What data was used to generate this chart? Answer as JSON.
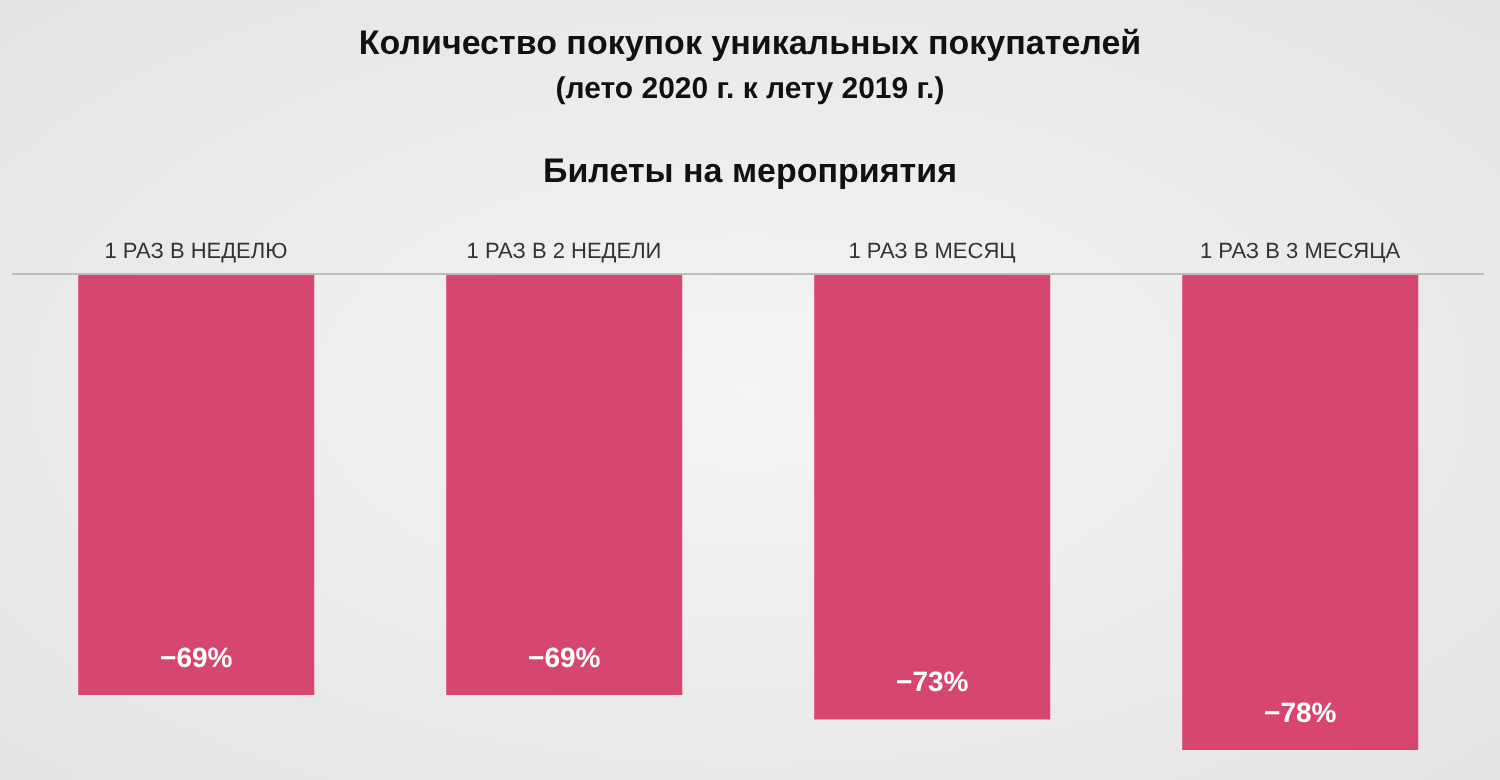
{
  "chart_data": {
    "type": "bar",
    "title": "Количество покупок уникальных покупателей",
    "subtitle": "(лето 2020 г. к лету 2019 г.)",
    "annotations": [
      "Билеты на мероприятия"
    ],
    "categories": [
      "1 РАЗ В НЕДЕЛЮ",
      "1 РАЗ В 2 НЕДЕЛИ",
      "1 РАЗ В МЕСЯЦ",
      "1 РАЗ В 3 МЕСЯЦА"
    ],
    "values": [
      -69,
      -69,
      -73,
      -78
    ],
    "color": "#d6466f",
    "value_labels": [
      "−69%",
      "−69%",
      "−73%",
      "−78%"
    ],
    "tick_labels": "x"
  }
}
